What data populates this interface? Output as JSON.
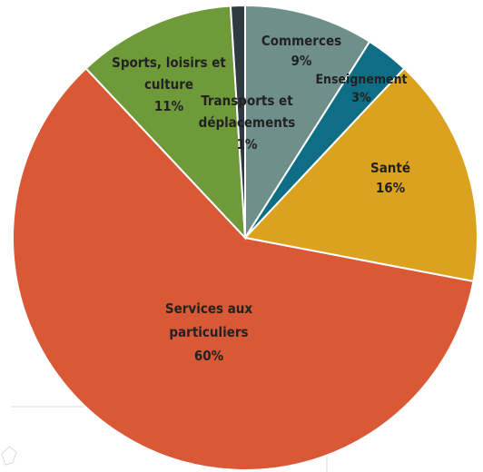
{
  "chart_data": {
    "type": "pie",
    "title": "",
    "slices": [
      {
        "label_lines": [
          "Commerces",
          "9%"
        ],
        "value": 9,
        "color": "#6f8f8c"
      },
      {
        "label_lines": [
          "Enseignement",
          "3%"
        ],
        "value": 3,
        "color": "#0f6e86"
      },
      {
        "label_lines": [
          "Santé",
          "16%"
        ],
        "value": 16,
        "color": "#dba21f"
      },
      {
        "label_lines": [
          "Services aux",
          "particuliers",
          "60%"
        ],
        "value": 60,
        "color": "#d95836"
      },
      {
        "label_lines": [
          "Sports, loisirs et",
          "culture",
          "11%"
        ],
        "value": 11,
        "color": "#6f9a3a"
      },
      {
        "label_lines": [
          "Transports et",
          "déplacements",
          "1%"
        ],
        "value": 1,
        "color": "#2e3a40"
      }
    ],
    "start_angle_deg": 0,
    "direction": "clockwise"
  }
}
